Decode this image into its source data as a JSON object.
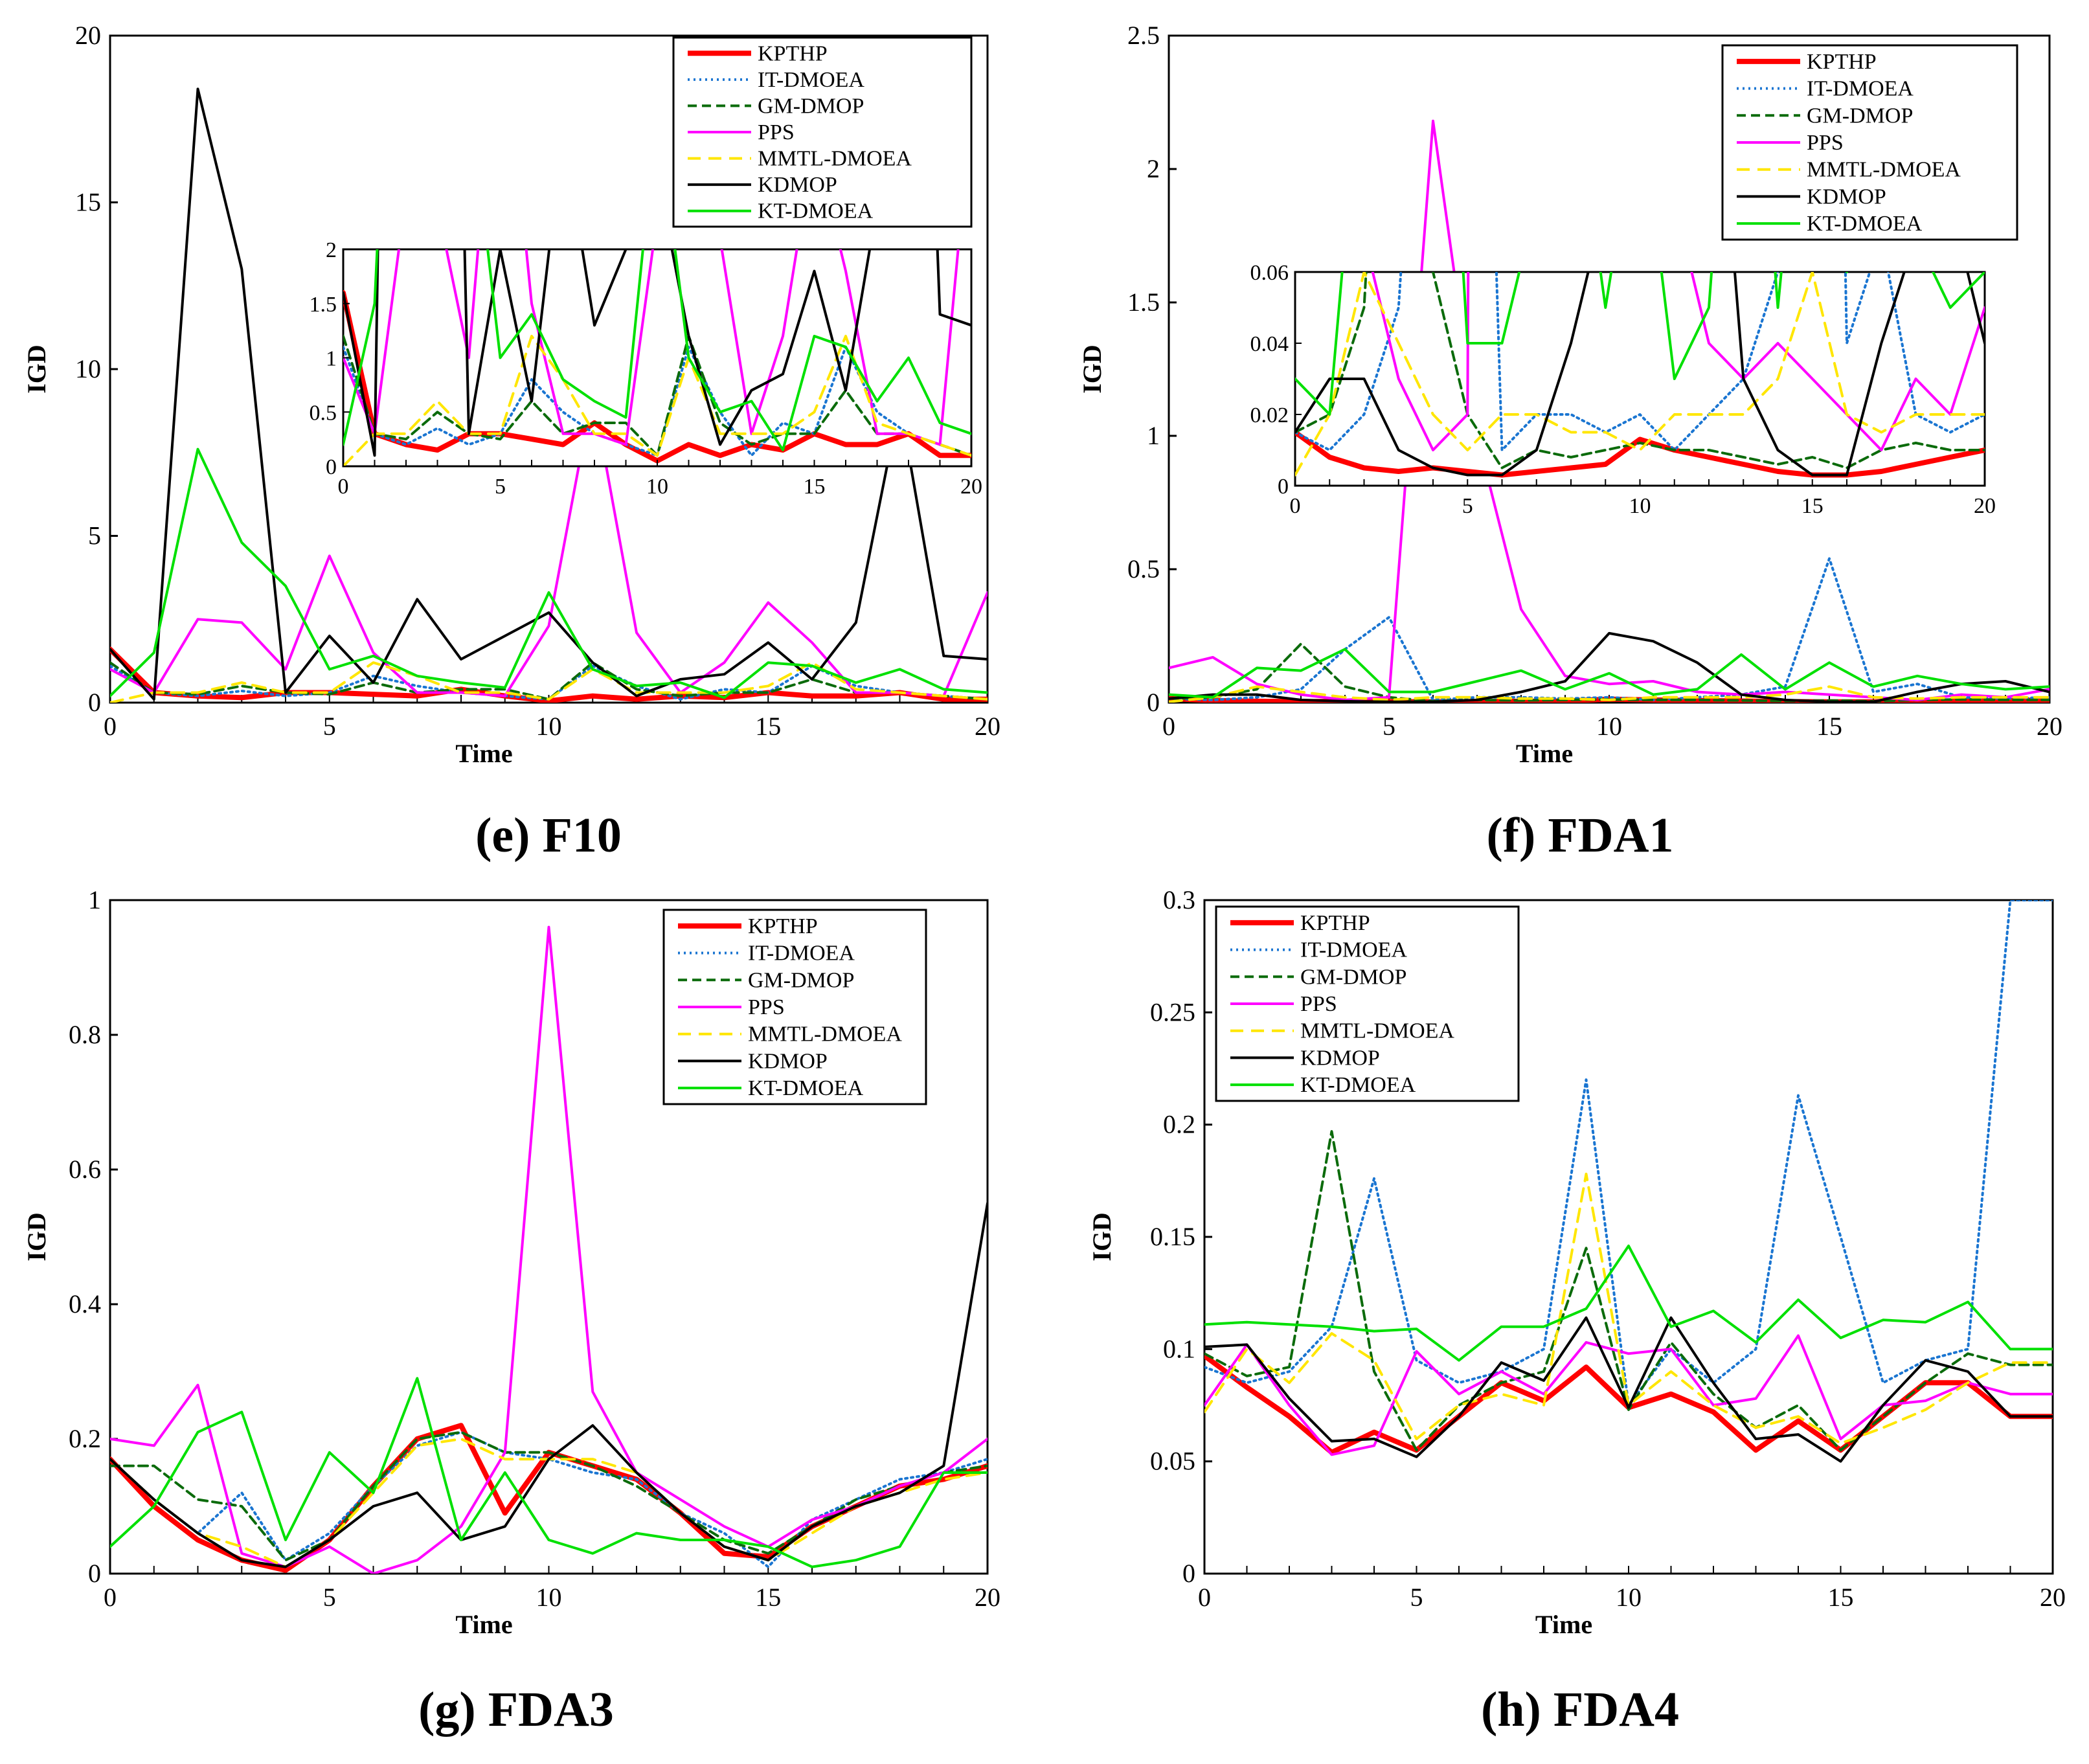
{
  "styles": {
    "KPTHP": {
      "color": "#ff0000",
      "width": 8,
      "dash": ""
    },
    "IT-DMOEA": {
      "color": "#1a75d1",
      "width": 4,
      "dash": "3,6"
    },
    "GM-DMOP": {
      "color": "#0b6b0b",
      "width": 4,
      "dash": "14,8"
    },
    "PPS": {
      "color": "#ff00ff",
      "width": 4,
      "dash": ""
    },
    "MMTL-DMOEA": {
      "color": "#ffe600",
      "width": 4,
      "dash": "20,12"
    },
    "KDMOP": {
      "color": "#000000",
      "width": 4,
      "dash": ""
    },
    "KT-DMOEA": {
      "color": "#00e000",
      "width": 4,
      "dash": ""
    }
  },
  "chart_data": [
    {
      "id": "e",
      "type": "line",
      "caption": "(e) F10",
      "xlabel": "Time",
      "ylabel": "IGD",
      "xlim": [
        0,
        20
      ],
      "ylim": [
        0,
        20
      ],
      "xticks": [
        0,
        5,
        10,
        15,
        20
      ],
      "yticks": [
        0,
        5,
        10,
        15,
        20
      ],
      "x": [
        0,
        1,
        2,
        3,
        4,
        5,
        6,
        7,
        8,
        9,
        10,
        11,
        12,
        13,
        14,
        15,
        16,
        17,
        18,
        19,
        20
      ],
      "legend_entries": [
        "KPTHP",
        "IT-DMOEA",
        "GM-DMOP",
        "PPS",
        "MMTL-DMOEA",
        "KDMOP",
        "KT-DMOEA"
      ],
      "series": [
        {
          "name": "KPTHP",
          "values": [
            1.6,
            0.3,
            0.2,
            0.15,
            0.3,
            0.3,
            0.25,
            0.2,
            0.4,
            0.2,
            0.05,
            0.2,
            0.1,
            0.2,
            0.15,
            0.3,
            0.2,
            0.2,
            0.3,
            0.1,
            0.1
          ]
        },
        {
          "name": "IT-DMOEA",
          "values": [
            1.1,
            0.3,
            0.2,
            0.35,
            0.2,
            0.3,
            0.8,
            0.5,
            0.3,
            0.2,
            0.1,
            1.1,
            0.5,
            0.1,
            0.4,
            0.3,
            1.1,
            0.5,
            0.3,
            0.2,
            0.1
          ]
        },
        {
          "name": "GM-DMOP",
          "values": [
            1.2,
            0.3,
            0.25,
            0.5,
            0.3,
            0.25,
            0.6,
            0.3,
            0.4,
            0.4,
            0.1,
            1.2,
            0.4,
            0.2,
            0.3,
            0.3,
            0.7,
            0.3,
            0.3,
            0.2,
            0.1
          ]
        },
        {
          "name": "PPS",
          "values": [
            1.0,
            0.3,
            2.5,
            2.4,
            1.0,
            4.4,
            1.5,
            0.3,
            0.3,
            0.2,
            2.3,
            9.3,
            2.1,
            0.3,
            1.2,
            3.0,
            1.8,
            0.3,
            0.3,
            0.2,
            3.3
          ]
        },
        {
          "name": "MMTL-DMOEA",
          "values": [
            0.0,
            0.3,
            0.3,
            0.6,
            0.3,
            0.3,
            1.2,
            0.8,
            0.3,
            0.3,
            0.1,
            1.0,
            0.3,
            0.3,
            0.3,
            0.5,
            1.2,
            0.4,
            0.3,
            0.2,
            0.1
          ]
        },
        {
          "name": "KDMOP",
          "values": [
            1.6,
            0.1,
            18.4,
            13.0,
            0.3,
            2.0,
            0.6,
            3.1,
            1.3,
            2.0,
            2.7,
            1.2,
            0.2,
            0.7,
            0.85,
            1.8,
            0.7,
            2.4,
            9.0,
            1.4,
            1.3
          ]
        },
        {
          "name": "KT-DMOEA",
          "values": [
            0.2,
            1.5,
            7.6,
            4.8,
            3.5,
            1.0,
            1.4,
            0.8,
            0.6,
            0.45,
            3.3,
            1.0,
            0.5,
            0.6,
            0.15,
            1.2,
            1.1,
            0.6,
            1.0,
            0.4,
            0.3
          ]
        }
      ],
      "inset": {
        "xlim": [
          0,
          20
        ],
        "ylim": [
          0,
          2
        ],
        "xticks": [
          0,
          5,
          10,
          15,
          20
        ],
        "yticks": [
          "0",
          "0.5",
          "1",
          "1.5",
          "2"
        ],
        "ytick_values": [
          0,
          0.5,
          1,
          1.5,
          2
        ]
      }
    },
    {
      "id": "f",
      "type": "line",
      "caption": "(f) FDA1",
      "xlabel": "Time",
      "ylabel": "IGD",
      "xlim": [
        0,
        20
      ],
      "ylim": [
        0,
        2.5
      ],
      "xticks": [
        0,
        5,
        10,
        15,
        20
      ],
      "yticks": [
        "0",
        "0.5",
        "1",
        "1.5",
        "2",
        "2.5"
      ],
      "ytick_values": [
        0,
        0.5,
        1,
        1.5,
        2,
        2.5
      ],
      "x": [
        0,
        1,
        2,
        3,
        4,
        5,
        6,
        7,
        8,
        9,
        10,
        11,
        12,
        13,
        14,
        15,
        16,
        17,
        18,
        19,
        20
      ],
      "legend_entries": [
        "KPTHP",
        "IT-DMOEA",
        "GM-DMOP",
        "PPS",
        "MMTL-DMOEA",
        "KDMOP",
        "KT-DMOEA"
      ],
      "series": [
        {
          "name": "KPTHP",
          "values": [
            0.015,
            0.008,
            0.005,
            0.004,
            0.005,
            0.004,
            0.003,
            0.004,
            0.005,
            0.006,
            0.013,
            0.01,
            0.008,
            0.006,
            0.004,
            0.003,
            0.003,
            0.004,
            0.006,
            0.008,
            0.01
          ]
        },
        {
          "name": "IT-DMOEA",
          "values": [
            0.015,
            0.01,
            0.02,
            0.05,
            0.2,
            0.32,
            0.01,
            0.02,
            0.02,
            0.015,
            0.02,
            0.01,
            0.02,
            0.03,
            0.06,
            0.54,
            0.04,
            0.07,
            0.02,
            0.015,
            0.02
          ]
        },
        {
          "name": "GM-DMOP",
          "values": [
            0.015,
            0.02,
            0.05,
            0.22,
            0.06,
            0.02,
            0.005,
            0.01,
            0.008,
            0.01,
            0.012,
            0.01,
            0.01,
            0.008,
            0.006,
            0.008,
            0.005,
            0.01,
            0.012,
            0.01,
            0.01
          ]
        },
        {
          "name": "PPS",
          "values": [
            0.13,
            0.17,
            0.07,
            0.03,
            0.01,
            0.02,
            2.18,
            1.0,
            0.35,
            0.1,
            0.07,
            0.08,
            0.04,
            0.03,
            0.04,
            0.03,
            0.02,
            0.01,
            0.03,
            0.02,
            0.05
          ]
        },
        {
          "name": "MMTL-DMOEA",
          "values": [
            0.003,
            0.02,
            0.06,
            0.04,
            0.02,
            0.01,
            0.02,
            0.02,
            0.015,
            0.015,
            0.01,
            0.02,
            0.02,
            0.02,
            0.03,
            0.06,
            0.02,
            0.015,
            0.02,
            0.02,
            0.02
          ]
        },
        {
          "name": "KDMOP",
          "values": [
            0.015,
            0.03,
            0.03,
            0.01,
            0.005,
            0.003,
            0.003,
            0.01,
            0.04,
            0.08,
            0.26,
            0.23,
            0.15,
            0.03,
            0.01,
            0.003,
            0.003,
            0.04,
            0.07,
            0.08,
            0.04
          ]
        },
        {
          "name": "KT-DMOEA",
          "values": [
            0.03,
            0.02,
            0.13,
            0.12,
            0.2,
            0.04,
            0.04,
            0.08,
            0.12,
            0.05,
            0.11,
            0.03,
            0.05,
            0.18,
            0.05,
            0.15,
            0.06,
            0.1,
            0.07,
            0.05,
            0.06
          ]
        }
      ],
      "inset": {
        "xlim": [
          0,
          20
        ],
        "ylim": [
          0,
          0.06
        ],
        "xticks": [
          0,
          5,
          10,
          15,
          20
        ],
        "yticks": [
          "0",
          "0.02",
          "0.04",
          "0.06"
        ],
        "ytick_values": [
          0,
          0.02,
          0.04,
          0.06
        ]
      }
    },
    {
      "id": "g",
      "type": "line",
      "caption": "(g) FDA3",
      "xlabel": "Time",
      "ylabel": "IGD",
      "xlim": [
        0,
        20
      ],
      "ylim": [
        0,
        1
      ],
      "xticks": [
        0,
        5,
        10,
        15,
        20
      ],
      "yticks": [
        "0",
        "0.2",
        "0.4",
        "0.6",
        "0.8",
        "1"
      ],
      "ytick_values": [
        0,
        0.2,
        0.4,
        0.6,
        0.8,
        1
      ],
      "x": [
        0,
        1,
        2,
        3,
        4,
        5,
        6,
        7,
        8,
        9,
        10,
        11,
        12,
        13,
        14,
        15,
        16,
        17,
        18,
        19,
        20
      ],
      "legend_entries": [
        "KPTHP",
        "IT-DMOEA",
        "GM-DMOP",
        "PPS",
        "MMTL-DMOEA",
        "KDMOP",
        "KT-DMOEA"
      ],
      "series": [
        {
          "name": "KPTHP",
          "values": [
            0.17,
            0.1,
            0.05,
            0.02,
            0.005,
            0.05,
            0.13,
            0.2,
            0.22,
            0.09,
            0.18,
            0.16,
            0.14,
            0.09,
            0.03,
            0.025,
            0.07,
            0.1,
            0.13,
            0.14,
            0.16
          ]
        },
        {
          "name": "IT-DMOEA",
          "values": [
            0.17,
            0.11,
            0.06,
            0.12,
            0.02,
            0.06,
            0.13,
            0.19,
            0.21,
            0.18,
            0.17,
            0.15,
            0.14,
            0.09,
            0.06,
            0.01,
            0.08,
            0.11,
            0.14,
            0.15,
            0.17
          ]
        },
        {
          "name": "GM-DMOP",
          "values": [
            0.16,
            0.16,
            0.11,
            0.1,
            0.02,
            0.05,
            0.13,
            0.2,
            0.21,
            0.18,
            0.18,
            0.16,
            0.13,
            0.09,
            0.05,
            0.03,
            0.07,
            0.11,
            0.13,
            0.15,
            0.16
          ]
        },
        {
          "name": "PPS",
          "values": [
            0.2,
            0.19,
            0.28,
            0.03,
            0.01,
            0.04,
            0.0,
            0.02,
            0.07,
            0.18,
            0.96,
            0.27,
            0.15,
            0.11,
            0.07,
            0.04,
            0.08,
            0.1,
            0.13,
            0.15,
            0.2
          ]
        },
        {
          "name": "MMTL-DMOEA",
          "values": [
            0.17,
            0.11,
            0.06,
            0.04,
            0.01,
            0.05,
            0.12,
            0.19,
            0.2,
            0.17,
            0.17,
            0.17,
            0.15,
            0.09,
            0.04,
            0.02,
            0.06,
            0.1,
            0.12,
            0.14,
            0.15
          ]
        },
        {
          "name": "KDMOP",
          "values": [
            0.17,
            0.11,
            0.06,
            0.02,
            0.01,
            0.05,
            0.1,
            0.12,
            0.05,
            0.07,
            0.17,
            0.22,
            0.15,
            0.09,
            0.04,
            0.02,
            0.07,
            0.1,
            0.12,
            0.16,
            0.55
          ]
        },
        {
          "name": "KT-DMOEA",
          "values": [
            0.04,
            0.1,
            0.21,
            0.24,
            0.05,
            0.18,
            0.12,
            0.29,
            0.05,
            0.15,
            0.05,
            0.03,
            0.06,
            0.05,
            0.05,
            0.04,
            0.01,
            0.02,
            0.04,
            0.15,
            0.15
          ]
        }
      ]
    },
    {
      "id": "h",
      "type": "line",
      "caption": "(h) FDA4",
      "xlabel": "Time",
      "ylabel": "IGD",
      "xlim": [
        0,
        20
      ],
      "ylim": [
        0,
        0.3
      ],
      "xticks": [
        0,
        5,
        10,
        15,
        20
      ],
      "yticks": [
        "0",
        "0.05",
        "0.1",
        "0.15",
        "0.2",
        "0.25",
        "0.3"
      ],
      "ytick_values": [
        0,
        0.05,
        0.1,
        0.15,
        0.2,
        0.25,
        0.3
      ],
      "x": [
        0,
        1,
        2,
        3,
        4,
        5,
        6,
        7,
        8,
        9,
        10,
        11,
        12,
        13,
        14,
        15,
        16,
        17,
        18,
        19,
        20
      ],
      "legend_entries": [
        "KPTHP",
        "IT-DMOEA",
        "GM-DMOP",
        "PPS",
        "MMTL-DMOEA",
        "KDMOP",
        "KT-DMOEA"
      ],
      "series": [
        {
          "name": "KPTHP",
          "values": [
            0.097,
            0.083,
            0.07,
            0.054,
            0.063,
            0.055,
            0.07,
            0.085,
            0.077,
            0.092,
            0.074,
            0.08,
            0.072,
            0.055,
            0.068,
            0.055,
            0.07,
            0.085,
            0.085,
            0.07,
            0.07
          ]
        },
        {
          "name": "IT-DMOEA",
          "values": [
            0.092,
            0.085,
            0.09,
            0.11,
            0.176,
            0.095,
            0.085,
            0.09,
            0.1,
            0.22,
            0.075,
            0.1,
            0.085,
            0.1,
            0.213,
            0.15,
            0.085,
            0.095,
            0.1,
            0.3,
            0.3
          ]
        },
        {
          "name": "GM-DMOP",
          "values": [
            0.098,
            0.088,
            0.092,
            0.197,
            0.09,
            0.055,
            0.075,
            0.085,
            0.09,
            0.145,
            0.073,
            0.103,
            0.08,
            0.065,
            0.075,
            0.055,
            0.07,
            0.085,
            0.098,
            0.093,
            0.093
          ]
        },
        {
          "name": "PPS",
          "values": [
            0.075,
            0.102,
            0.075,
            0.053,
            0.057,
            0.099,
            0.08,
            0.09,
            0.08,
            0.103,
            0.098,
            0.1,
            0.075,
            0.078,
            0.106,
            0.06,
            0.075,
            0.077,
            0.085,
            0.08,
            0.08
          ]
        },
        {
          "name": "MMTL-DMOEA",
          "values": [
            0.072,
            0.1,
            0.085,
            0.107,
            0.095,
            0.06,
            0.075,
            0.08,
            0.075,
            0.178,
            0.075,
            0.09,
            0.075,
            0.065,
            0.07,
            0.058,
            0.065,
            0.073,
            0.085,
            0.094,
            0.094
          ]
        },
        {
          "name": "KDMOP",
          "values": [
            0.101,
            0.102,
            0.078,
            0.059,
            0.06,
            0.052,
            0.07,
            0.094,
            0.086,
            0.114,
            0.074,
            0.114,
            0.085,
            0.06,
            0.062,
            0.05,
            0.075,
            0.095,
            0.09,
            0.07,
            0.07
          ]
        },
        {
          "name": "KT-DMOEA",
          "values": [
            0.111,
            0.112,
            0.111,
            0.11,
            0.108,
            0.109,
            0.095,
            0.11,
            0.11,
            0.118,
            0.146,
            0.11,
            0.117,
            0.103,
            0.122,
            0.105,
            0.113,
            0.112,
            0.121,
            0.1,
            0.1
          ]
        }
      ]
    }
  ]
}
